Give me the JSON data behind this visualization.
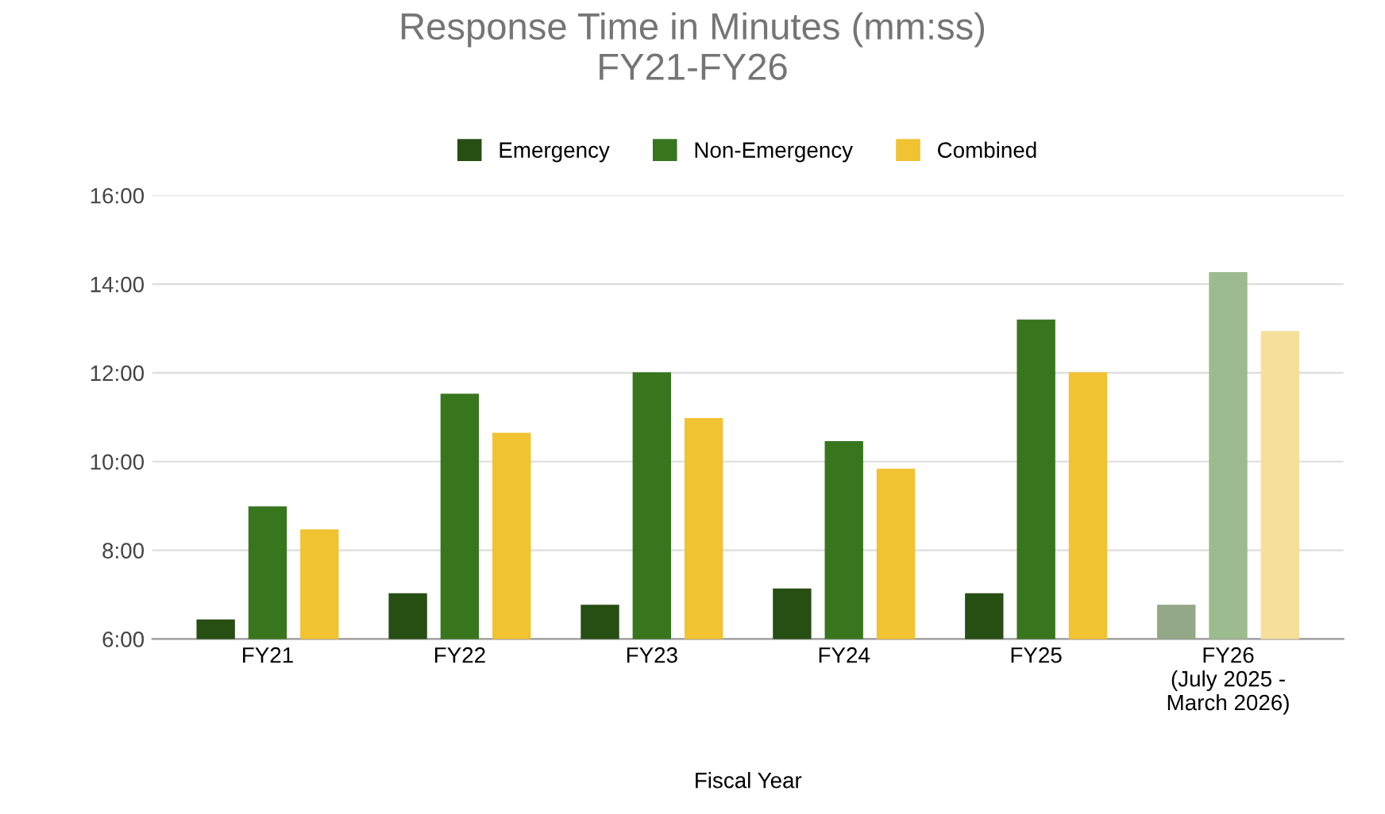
{
  "chart_data": {
    "type": "bar",
    "title": "Response Time in Minutes (mm:ss)\nFY21-FY26",
    "xlabel": "Fiscal Year",
    "categories": [
      "FY21",
      "FY22",
      "FY23",
      "FY24",
      "FY25",
      "FY26\n(July 2025 -\nMarch 2026)"
    ],
    "series": [
      {
        "name": "Emergency",
        "color": "#274e13",
        "colors": [
          "#274e13",
          "#274e13",
          "#274e13",
          "#274e13",
          "#274e13",
          "#93a886"
        ],
        "values": [
          6.44,
          7.03,
          6.77,
          7.14,
          7.03,
          6.77
        ]
      },
      {
        "name": "Non-Emergency",
        "color": "#38761d",
        "colors": [
          "#38761d",
          "#38761d",
          "#38761d",
          "#38761d",
          "#38761d",
          "#9cbb8e"
        ],
        "values": [
          8.99,
          11.53,
          12.01,
          10.46,
          13.2,
          14.27
        ]
      },
      {
        "name": "Combined",
        "color": "#f1c232",
        "colors": [
          "#f1c232",
          "#f1c232",
          "#f1c232",
          "#f1c232",
          "#f1c232",
          "#f6df9a"
        ],
        "values": [
          8.47,
          10.65,
          10.98,
          9.84,
          12.01,
          12.94
        ]
      }
    ],
    "ylim": [
      6,
      16
    ],
    "yticks": [
      {
        "value": 6,
        "label": "6:00"
      },
      {
        "value": 8,
        "label": "8:00"
      },
      {
        "value": 10,
        "label": "10:00"
      },
      {
        "value": 12,
        "label": "12:00"
      },
      {
        "value": 14,
        "label": "14:00"
      },
      {
        "value": 16,
        "label": "16:00"
      }
    ],
    "grid": "y",
    "legend": "top"
  }
}
